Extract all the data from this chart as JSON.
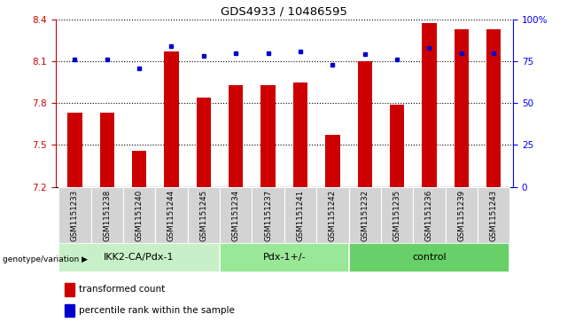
{
  "title": "GDS4933 / 10486595",
  "samples": [
    "GSM1151233",
    "GSM1151238",
    "GSM1151240",
    "GSM1151244",
    "GSM1151245",
    "GSM1151234",
    "GSM1151237",
    "GSM1151241",
    "GSM1151242",
    "GSM1151232",
    "GSM1151235",
    "GSM1151236",
    "GSM1151239",
    "GSM1151243"
  ],
  "red_values": [
    7.73,
    7.73,
    7.46,
    8.17,
    7.84,
    7.93,
    7.93,
    7.95,
    7.57,
    8.1,
    7.79,
    8.37,
    8.33,
    8.33
  ],
  "blue_values": [
    76,
    76,
    71,
    84,
    78,
    80,
    80,
    81,
    73,
    79,
    76,
    83,
    80,
    80
  ],
  "groups": [
    {
      "label": "IKK2-CA/Pdx-1",
      "start": 0,
      "end": 5,
      "color": "#c8f0c8"
    },
    {
      "label": "Pdx-1+/-",
      "start": 5,
      "end": 9,
      "color": "#98e898"
    },
    {
      "label": "control",
      "start": 9,
      "end": 14,
      "color": "#68d068"
    }
  ],
  "ylim_left": [
    7.2,
    8.4
  ],
  "ylim_right": [
    0,
    100
  ],
  "yticks_left": [
    7.2,
    7.5,
    7.8,
    8.1,
    8.4
  ],
  "yticks_right": [
    0,
    25,
    50,
    75,
    100
  ],
  "ytick_labels_right": [
    "0",
    "25",
    "50",
    "75",
    "100%"
  ],
  "red_color": "#cc0000",
  "blue_color": "#0000cc",
  "bar_width": 0.45,
  "bg_color": "#ffffff",
  "tick_bg": "#d3d3d3",
  "legend_red": "transformed count",
  "legend_blue": "percentile rank within the sample",
  "genotype_label": "genotype/variation"
}
